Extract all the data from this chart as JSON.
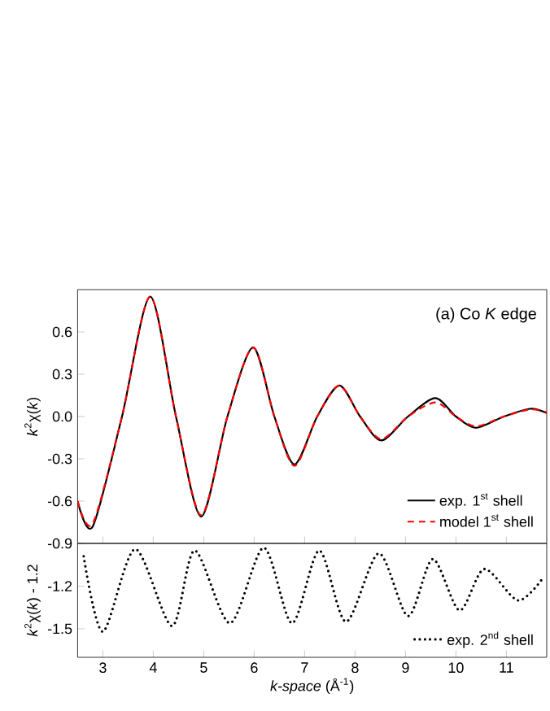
{
  "chart_data": [
    {
      "type": "line",
      "ylabel": "*k*$^{2}$χ(*k*)",
      "annotations": [
        "(a)  Co *K* edge"
      ],
      "xlim": [
        2.5,
        11.8
      ],
      "xticks": [
        3,
        4,
        5,
        6,
        7,
        8,
        9,
        10,
        11
      ],
      "ylim": [
        -0.9,
        0.9
      ],
      "yticks": [
        -0.9,
        -0.6,
        -0.3,
        {
          "value": 0,
          "label": "0.0"
        },
        0.3,
        0.6
      ],
      "tick_labels": "y",
      "legend": "bottom right",
      "series": [
        {
          "name": "exp. 1$^{st}$ shell",
          "color": "#000000",
          "line_style": "solid",
          "x": [
            2.5,
            2.8,
            3.38,
            3.94,
            4.45,
            4.95,
            5.47,
            5.98,
            6.4,
            6.8,
            7.25,
            7.69,
            8.1,
            8.52,
            9.05,
            9.59,
            10.0,
            10.4,
            10.95,
            11.47,
            11.8
          ],
          "values": [
            -0.6,
            -0.78,
            0.0,
            0.85,
            0.0,
            -0.71,
            0.0,
            0.49,
            0.0,
            -0.34,
            0.0,
            0.22,
            0.0,
            -0.17,
            0.0,
            0.13,
            0.0,
            -0.08,
            0.0,
            0.055,
            0.025
          ]
        },
        {
          "name": "model 1$^{st}$ shell",
          "color": "#ff0000",
          "line_style": "dashed",
          "x": [
            2.5,
            2.8,
            3.38,
            3.94,
            4.45,
            4.95,
            5.47,
            5.98,
            6.4,
            6.8,
            7.25,
            7.69,
            8.1,
            8.52,
            9.05,
            9.59,
            10.0,
            10.4,
            10.95,
            11.47,
            11.8
          ],
          "values": [
            -0.6,
            -0.76,
            0.0,
            0.85,
            0.0,
            -0.7,
            0.0,
            0.49,
            0.0,
            -0.35,
            0.0,
            0.22,
            0.0,
            -0.16,
            0.0,
            0.1,
            0.0,
            -0.07,
            0.0,
            0.05,
            0.03
          ]
        }
      ]
    },
    {
      "type": "line",
      "ylabel": "*k*$^{2}$χ(*k*) - 1.2",
      "xlabel": "*k-space* (Å$^{-1}$)",
      "xlim": [
        2.5,
        11.8
      ],
      "xticks": [
        3,
        4,
        5,
        6,
        7,
        8,
        9,
        10,
        11
      ],
      "ylim": [
        -1.7,
        -0.9
      ],
      "yticks": [
        -1.5,
        -1.2
      ],
      "legend": "bottom right",
      "series": [
        {
          "name": "exp. 2$^{nd}$ shell",
          "color": "#000000",
          "line_style": "dotted",
          "x": [
            2.62,
            3.0,
            3.64,
            4.37,
            4.82,
            5.52,
            6.19,
            6.75,
            7.29,
            7.82,
            8.47,
            9.05,
            9.54,
            10.07,
            10.56,
            11.23,
            11.73
          ],
          "values": [
            -0.99,
            -1.52,
            -0.94,
            -1.48,
            -0.95,
            -1.46,
            -0.93,
            -1.46,
            -0.95,
            -1.45,
            -0.97,
            -1.41,
            -1.01,
            -1.37,
            -1.08,
            -1.3,
            -1.14
          ]
        }
      ]
    }
  ]
}
